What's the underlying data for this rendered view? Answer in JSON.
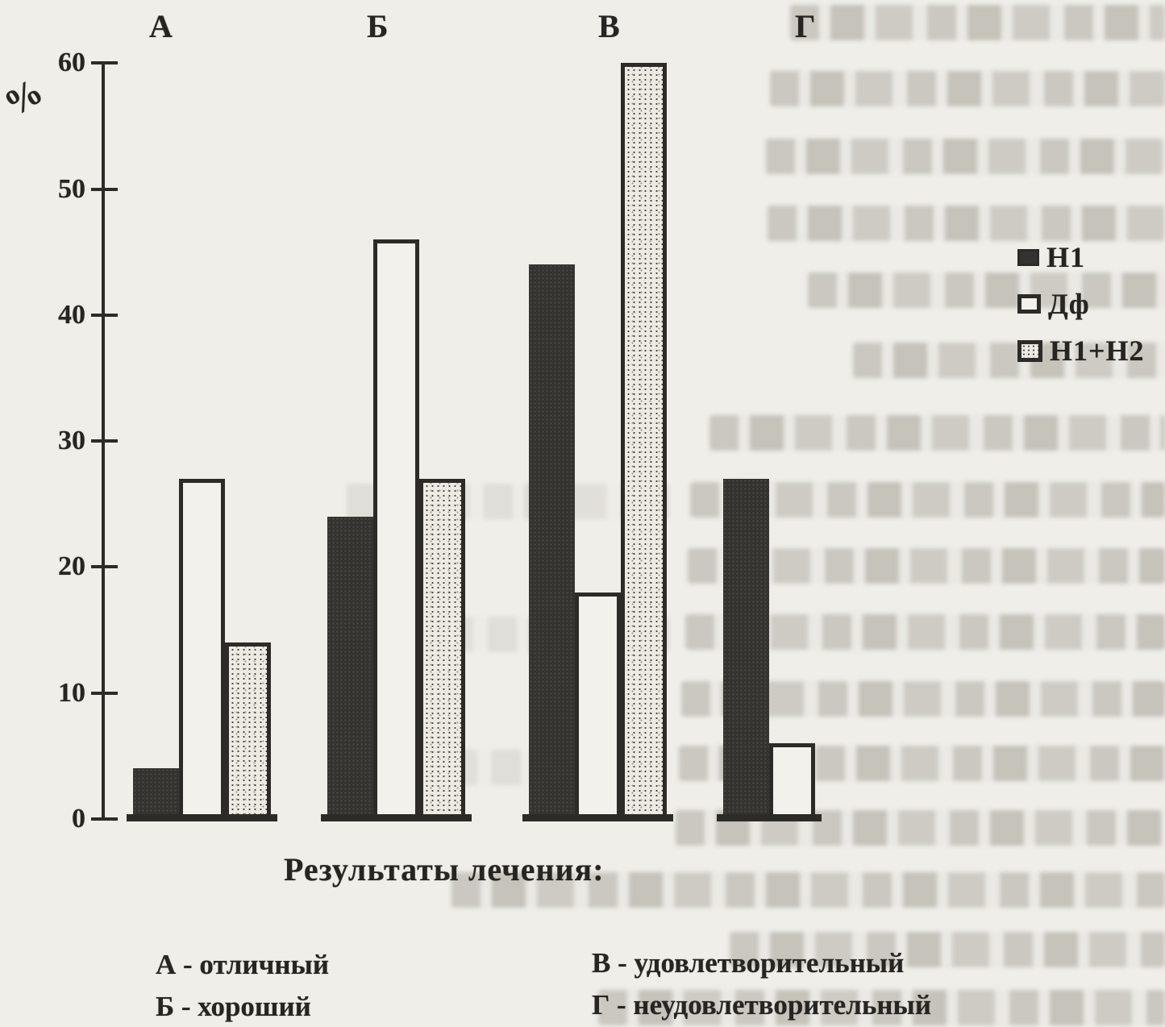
{
  "page": {
    "kind": "scanned book figure",
    "paper_color": "#efeee9",
    "ink_color": "#2c2b27"
  },
  "chart_data": {
    "type": "bar",
    "title": "",
    "xlabel": "Результаты лечения:",
    "ylabel": "%",
    "ylim": [
      0,
      60
    ],
    "yticks": [
      0,
      10,
      20,
      30,
      40,
      50,
      60
    ],
    "grid": false,
    "legend_position": "right",
    "categories": [
      "А",
      "Б",
      "В",
      "Г"
    ],
    "series": [
      {
        "name": "Н1",
        "swatch": "solid",
        "values": [
          4,
          24,
          44,
          27
        ]
      },
      {
        "name": "Дф",
        "swatch": "open",
        "values": [
          27,
          46,
          18,
          6
        ]
      },
      {
        "name": "Н1+Н2",
        "swatch": "stipple",
        "values": [
          14,
          27,
          60,
          null
        ]
      }
    ]
  },
  "category_descriptions": [
    {
      "key": "А",
      "label": "А - отличный"
    },
    {
      "key": "Б",
      "label": "Б - хороший"
    },
    {
      "key": "В",
      "label": "В - удовлетворительный"
    },
    {
      "key": "Г",
      "label": "Г - неудовлетворительный"
    }
  ]
}
